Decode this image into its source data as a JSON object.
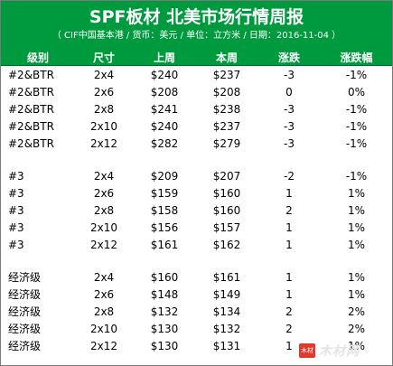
{
  "header": {
    "title": "SPF板材 北美市场行情周报",
    "subtitle": "（ CIF中国基本港 / 货币：美元 / 单位：立方米 / 日期：2016-11-04 ）"
  },
  "table": {
    "columns": [
      "级别",
      "尺寸",
      "上周",
      "本周",
      "涨跌",
      "涨跌幅"
    ],
    "groups": [
      {
        "rows": [
          [
            "#2&BTR",
            "2x4",
            "$240",
            "$237",
            "-3",
            "-1%"
          ],
          [
            "#2&BTR",
            "2x6",
            "$208",
            "$208",
            "0",
            "0%"
          ],
          [
            "#2&BTR",
            "2x8",
            "$241",
            "$238",
            "-3",
            "-1%"
          ],
          [
            "#2&BTR",
            "2x10",
            "$240",
            "$237",
            "-3",
            "-1%"
          ],
          [
            "#2&BTR",
            "2x12",
            "$282",
            "$279",
            "-3",
            "-1%"
          ]
        ]
      },
      {
        "rows": [
          [
            "#3",
            "2x4",
            "$209",
            "$207",
            "-2",
            "-1%"
          ],
          [
            "#3",
            "2x6",
            "$159",
            "$160",
            "1",
            "1%"
          ],
          [
            "#3",
            "2x8",
            "$158",
            "$160",
            "2",
            "1%"
          ],
          [
            "#3",
            "2x10",
            "$156",
            "$157",
            "1",
            "1%"
          ],
          [
            "#3",
            "2x12",
            "$161",
            "$162",
            "1",
            "1%"
          ]
        ]
      },
      {
        "rows": [
          [
            "经济级",
            "2x4",
            "$160",
            "$161",
            "1",
            "1%"
          ],
          [
            "经济级",
            "2x6",
            "$148",
            "$149",
            "1",
            "1%"
          ],
          [
            "经济级",
            "2x8",
            "$132",
            "$134",
            "2",
            "2%"
          ],
          [
            "经济级",
            "2x10",
            "$130",
            "$132",
            "2",
            "2%"
          ],
          [
            "经济级",
            "2x12",
            "$130",
            "$131",
            "1",
            "1%"
          ]
        ]
      }
    ]
  },
  "watermark": {
    "logo_text": "木材",
    "text": "木材网"
  },
  "colors": {
    "header_green": "#009a3e",
    "logo_red": "#e03a2d"
  }
}
